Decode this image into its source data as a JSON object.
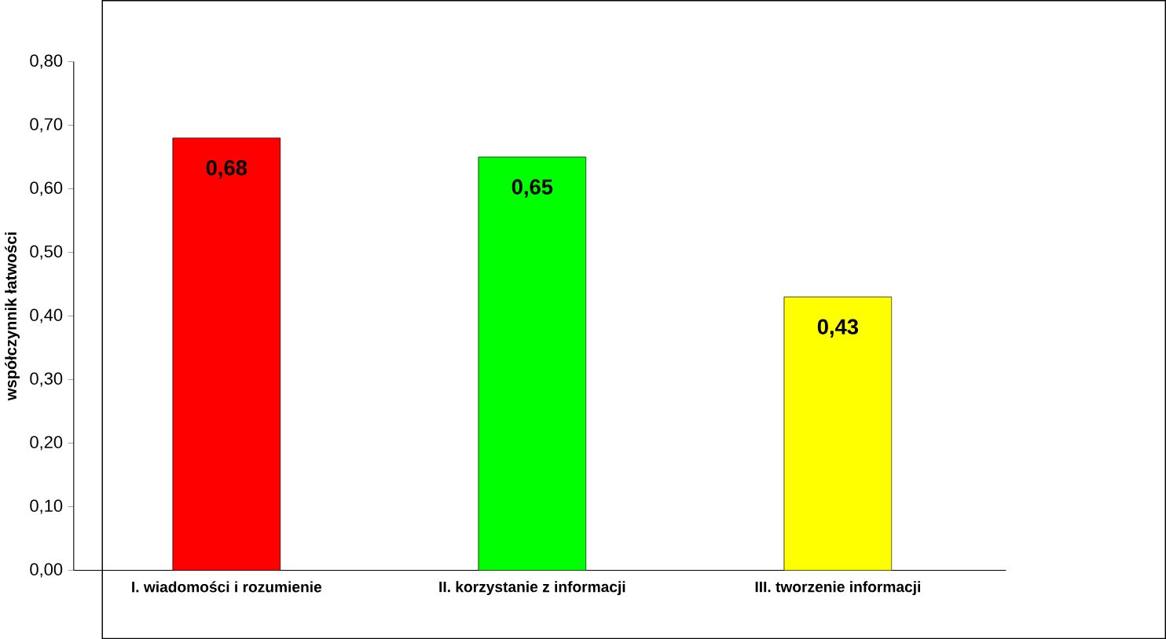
{
  "chart_data": {
    "type": "bar",
    "ylabel": "współczynnik łatwości",
    "categories": [
      "I. wiadomości i rozumienie",
      "II. korzystanie z informacji",
      "III. tworzenie informacji"
    ],
    "values": [
      0.68,
      0.65,
      0.43
    ],
    "colors": [
      "#ff0000",
      "#00ff00",
      "#ffff00"
    ],
    "value_labels": [
      "0,68",
      "0,65",
      "0,43"
    ],
    "ylim": [
      0,
      0.8
    ],
    "yticks": [
      {
        "value": 0,
        "label": "0,00"
      },
      {
        "value": 0.1,
        "label": "0,10"
      },
      {
        "value": 0.2,
        "label": "0,20"
      },
      {
        "value": 0.3,
        "label": "0,30"
      },
      {
        "value": 0.4,
        "label": "0,40"
      },
      {
        "value": 0.5,
        "label": "0,50"
      },
      {
        "value": 0.6,
        "label": "0,60"
      },
      {
        "value": 0.7,
        "label": "0,70"
      },
      {
        "value": 0.8,
        "label": "0,80"
      }
    ]
  }
}
